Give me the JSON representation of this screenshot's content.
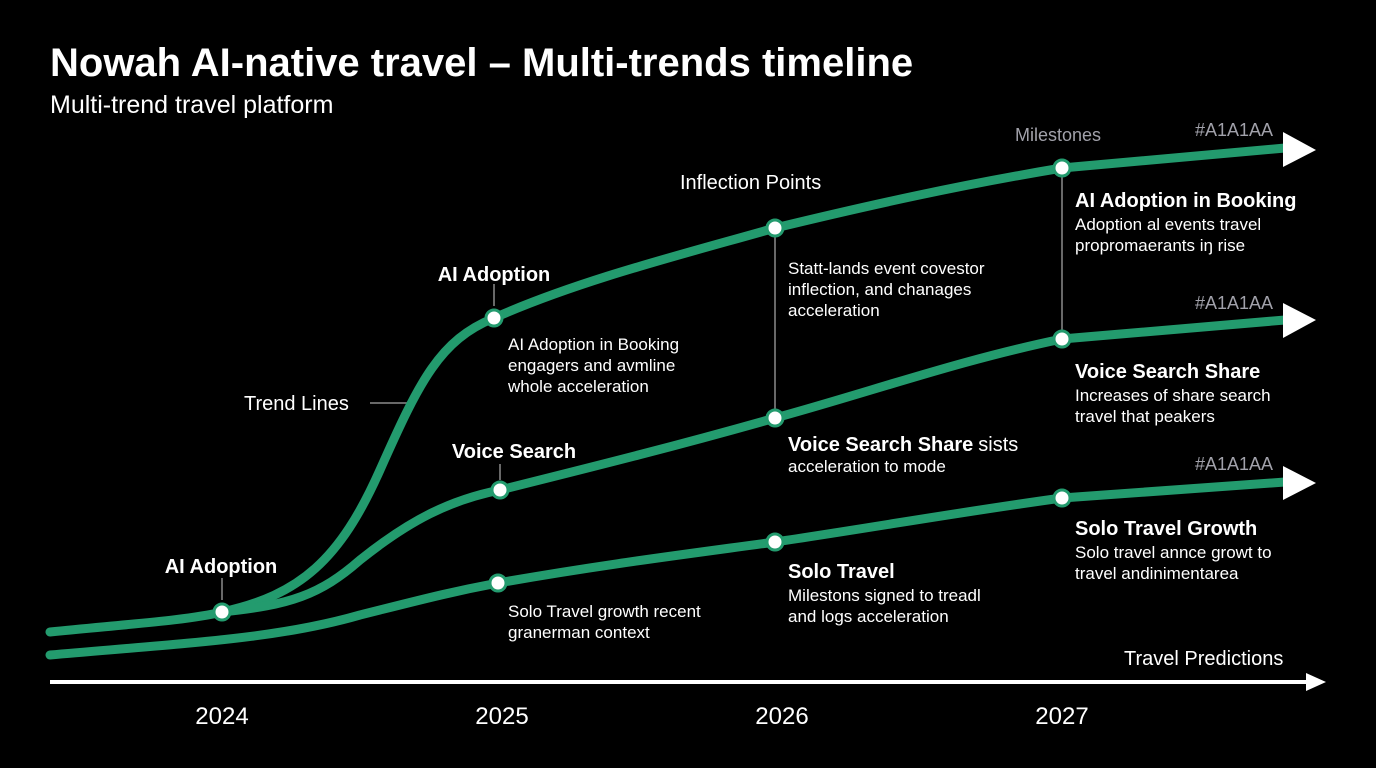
{
  "header": {
    "title": "Nowah AI-native travel – Multi-trends timeline",
    "subtitle": "Multi-trend travel platform"
  },
  "legend": {
    "milestones": "Milestones",
    "inflection": "Inflection Points",
    "trend_lines": "Trend Lines",
    "color_labels": [
      "#A1A1AA",
      "#A1A1AA",
      "#A1A1AA"
    ]
  },
  "axis": {
    "label": "Travel Predictions",
    "years": [
      "2024",
      "2025",
      "2026",
      "2027"
    ]
  },
  "annotations": [
    {
      "heading": "AI Adoption",
      "lines": []
    },
    {
      "heading": "AI Adoption",
      "lines": []
    },
    {
      "heading": "",
      "lines": [
        "AI Adoption in Booking",
        "engagers and avmline",
        "whole acceleration"
      ]
    },
    {
      "heading": "Voice Search",
      "lines": []
    },
    {
      "heading": "",
      "lines": [
        "Solo Travel growth recent",
        "granerman context"
      ]
    },
    {
      "heading": "",
      "lines": [
        "Statt-lands event covestor",
        "inflection, and chanages",
        "acceleration"
      ]
    },
    {
      "heading": "Voice Search Share",
      "lines": [
        "sists",
        "acceleration to mode"
      ]
    },
    {
      "heading": "Solo Travel",
      "lines": [
        "Milestons signed to treadl",
        "and logs acceleration"
      ]
    },
    {
      "heading": "AI Adoption in Booking",
      "lines": [
        "Adoption al events travel",
        "propromaerants iŋ rise"
      ]
    },
    {
      "heading": "Voice Search Share",
      "lines": [
        "Increases of share search",
        "travel that peakers"
      ]
    },
    {
      "heading": "Solo Travel Growth",
      "lines": [
        "Solo travel annce growt to",
        "travel andinimentarea"
      ]
    }
  ]
}
